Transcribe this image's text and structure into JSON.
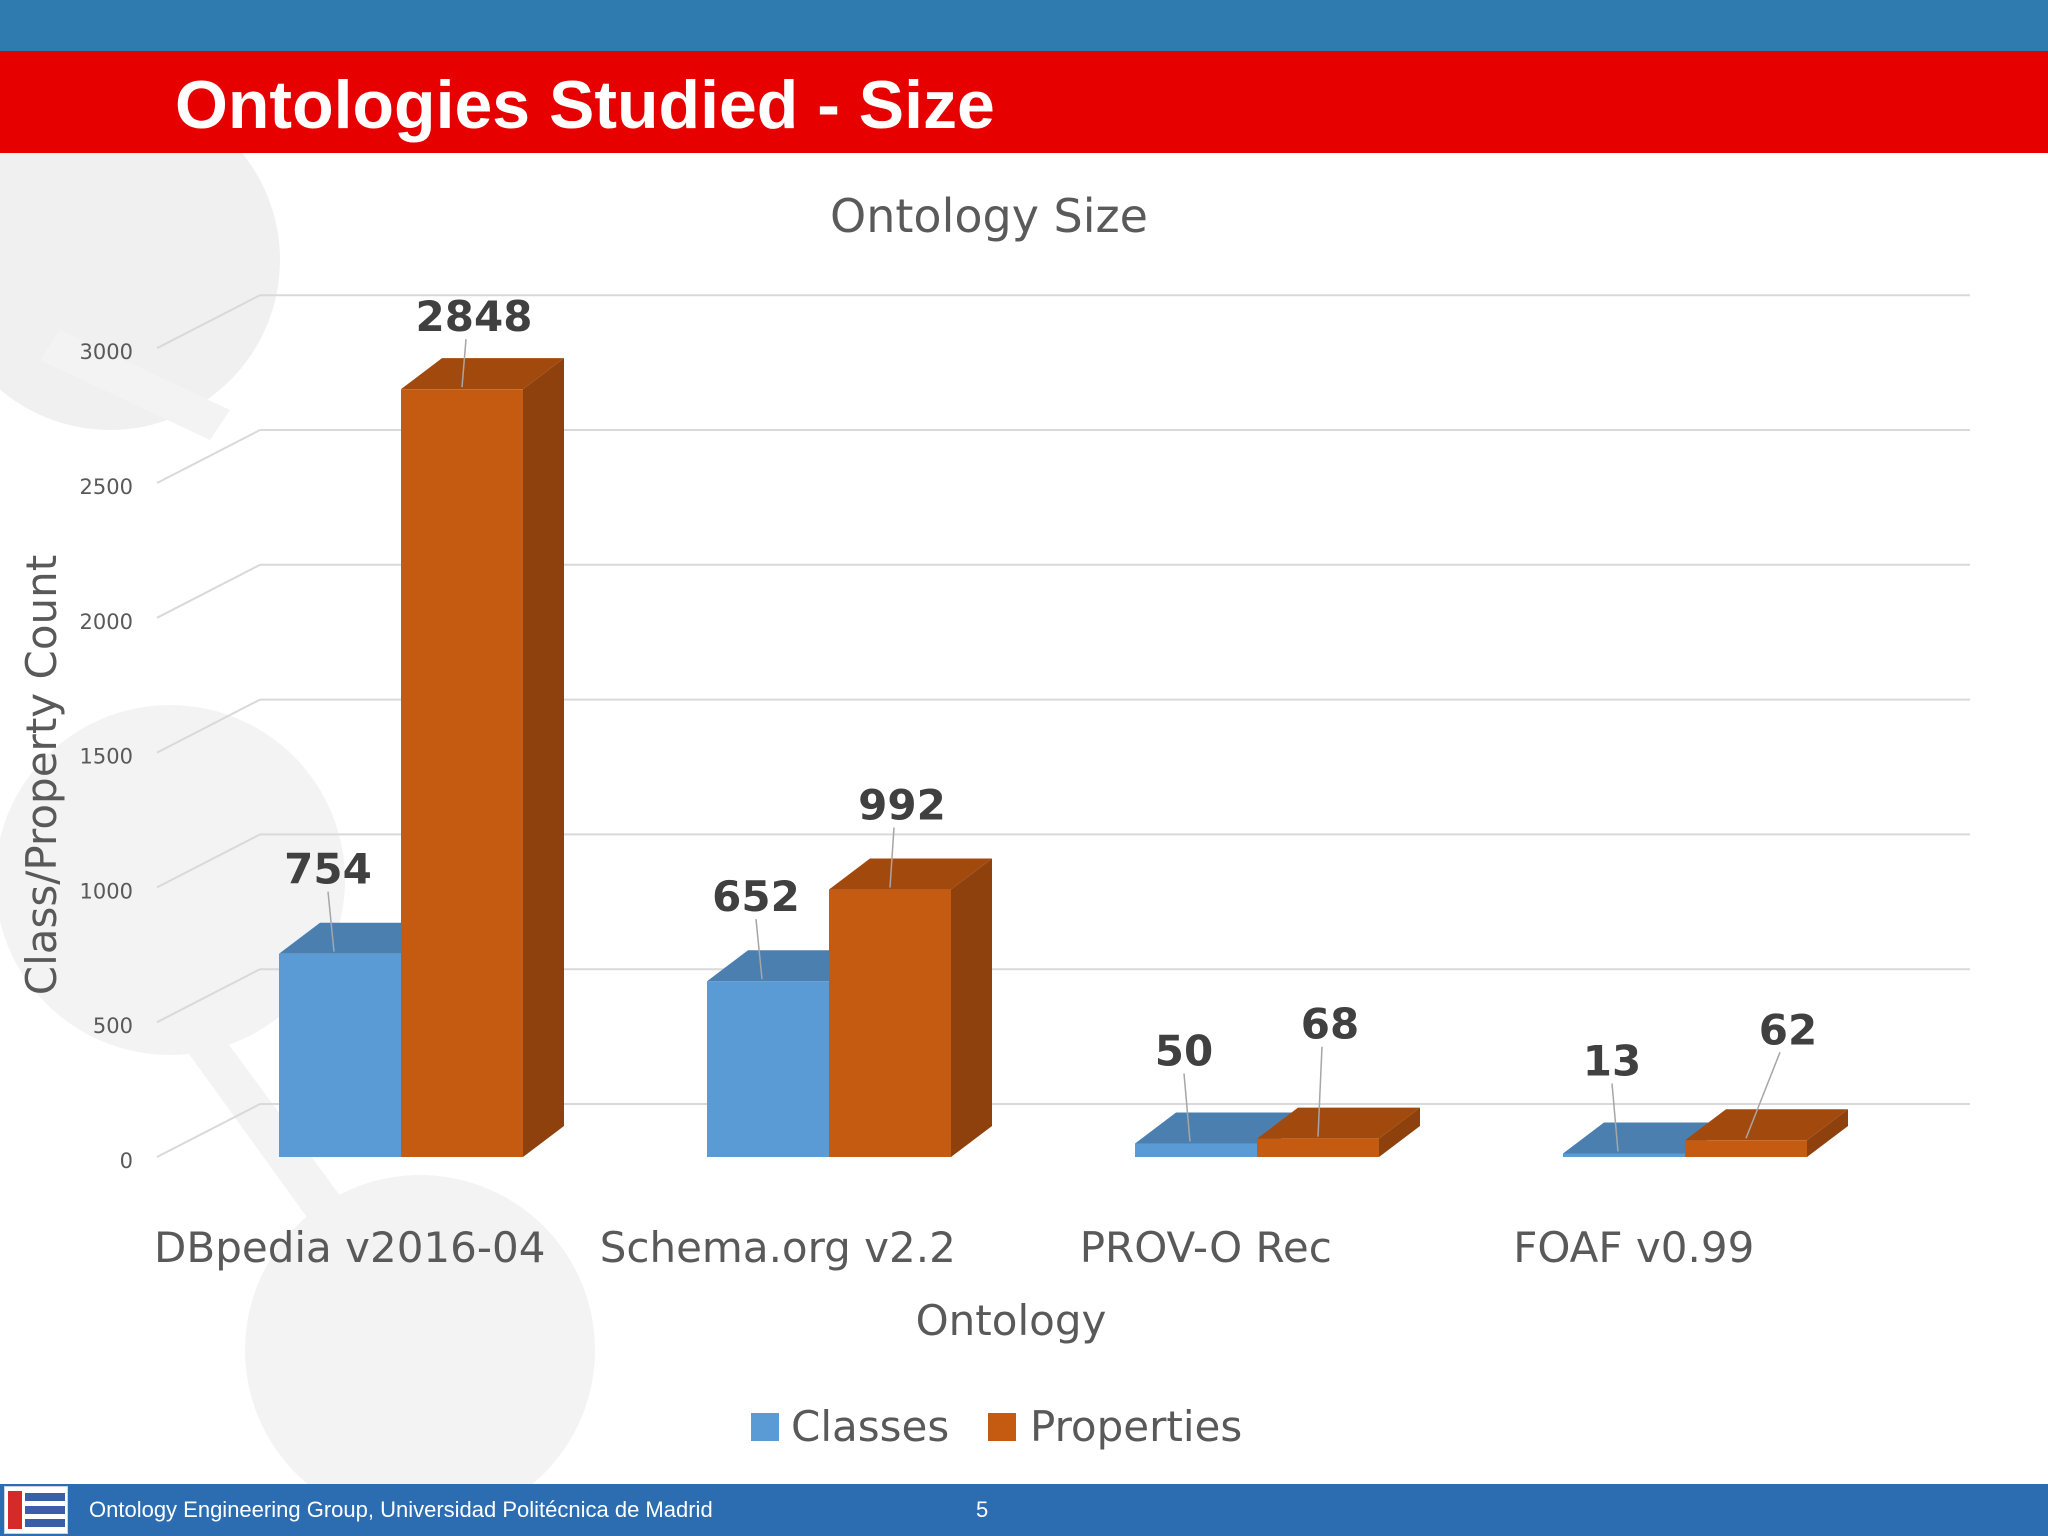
{
  "slide": {
    "title": "Ontologies Studied - Size",
    "footer_text": "Ontology Engineering Group, Universidad Politécnica de Madrid",
    "page_number": "5"
  },
  "colors": {
    "top_bar": "#2f7aae",
    "title_bar": "#e60000",
    "footer_bar": "#2c6db2",
    "classes": "#5b9bd5",
    "properties": "#c55a11"
  },
  "chart_data": {
    "type": "bar",
    "style": "3d-clustered-column",
    "title": "Ontology Size",
    "xlabel": "Ontology",
    "ylabel": "Class/Property Count",
    "categories": [
      "DBpedia v2016-04",
      "Schema.org v2.2",
      "PROV-O Rec",
      "FOAF v0.99"
    ],
    "series": [
      {
        "name": "Classes",
        "values": [
          754,
          652,
          50,
          13
        ],
        "labels": [
          "754",
          "652",
          "50",
          "13"
        ]
      },
      {
        "name": "Properties",
        "values": [
          2848,
          992,
          68,
          62
        ],
        "labels": [
          "2848",
          "992",
          "68",
          "62"
        ]
      }
    ],
    "ylim": [
      0,
      3000
    ],
    "yticks": [
      0,
      500,
      1000,
      1500,
      2000,
      2500,
      3000
    ],
    "ytick_labels": [
      "0",
      "500",
      "1000",
      "1500",
      "2000",
      "2500",
      "3000"
    ],
    "grid": true,
    "legend_position": "bottom",
    "data_labels": true
  }
}
